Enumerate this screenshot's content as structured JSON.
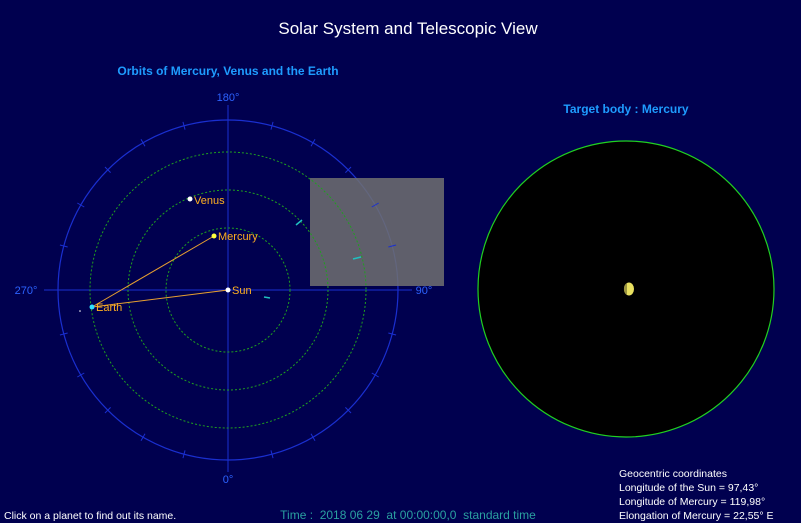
{
  "header": {
    "title": "Solar System and Telescopic View"
  },
  "orbit_panel": {
    "title": "Orbits of Mercury, Venus and the Earth",
    "angle_labels": {
      "top": "180°",
      "bottom": "0°",
      "left": "270°",
      "right": "90°"
    },
    "bodies": {
      "sun": "Sun",
      "mercury": "Mercury",
      "venus": "Venus",
      "earth": "Earth"
    }
  },
  "telescope_panel": {
    "title": "Target body : Mercury"
  },
  "footer": {
    "hint": "Click on a planet to find out its name.",
    "time": "Time :  2018 06 29  at 00:00:00,0  standard time",
    "coordinates": [
      "Geocentric coordinates",
      "Longitude of the Sun = 97,43°",
      "Longitude of Mercury = 119,98°",
      "Elongation of Mercury = 22,55° E"
    ]
  }
}
